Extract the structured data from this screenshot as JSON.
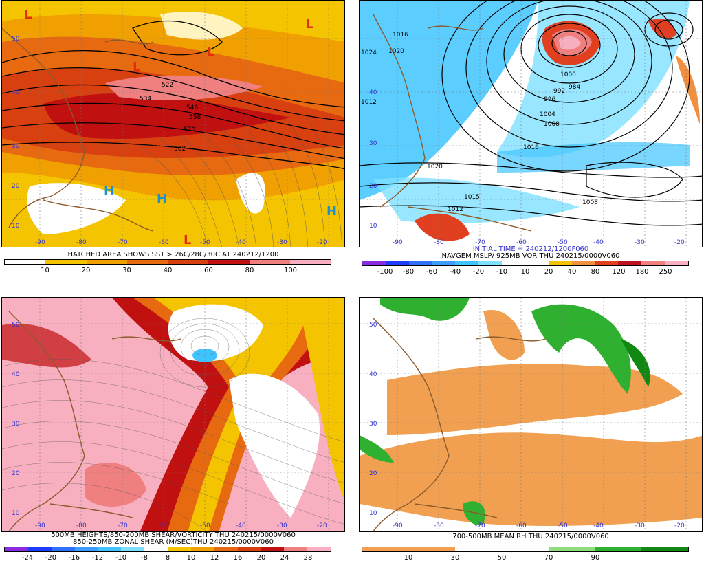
{
  "panels": {
    "tl": {
      "caption": "HATCHED AREA SHOWS SST > 26C/28C/30C AT 240212/1200",
      "ticks": [
        "10",
        "20",
        "30",
        "40",
        "60",
        "80",
        "100"
      ],
      "colors": [
        "#ffffff",
        "#f5c400",
        "#f0a000",
        "#e86a10",
        "#d84010",
        "#c01010",
        "#f08080",
        "#f8b0c0"
      ],
      "contours": [
        "522",
        "534",
        "546",
        "558",
        "570",
        "582"
      ],
      "highs": [
        "H",
        "H",
        "H"
      ],
      "lows": [
        "L",
        "L",
        "L",
        "L",
        "L"
      ],
      "lats": [
        "50",
        "40",
        "30",
        "20",
        "10"
      ],
      "lons": [
        "-90",
        "-80",
        "-70",
        "-60",
        "-50",
        "-40",
        "-30",
        "-20"
      ]
    },
    "tr": {
      "caption1": "INITIAL TIME = 240212/1200F060",
      "caption2": "NAVGEM MSLP/ 925MB VOR THU 240215/0000V060",
      "ticks": [
        "-100",
        "-80",
        "-60",
        "-40",
        "-20",
        "-10",
        "10",
        "20",
        "40",
        "80",
        "120",
        "180",
        "250"
      ],
      "colors": [
        "#8a2be2",
        "#1e3cff",
        "#2f70ff",
        "#3c9cff",
        "#40c4ff",
        "#7ee0ff",
        "#ffffff",
        "#ffffff",
        "#f5c400",
        "#f09040",
        "#e04020",
        "#c01020",
        "#f08080",
        "#f8b0c0"
      ],
      "isobars": [
        "1016",
        "1020",
        "1024",
        "1012",
        "1000",
        "992",
        "984",
        "996",
        "1004",
        "1008",
        "1016",
        "1020",
        "1015",
        "1012",
        "1008"
      ],
      "lats": [
        "40",
        "30",
        "20",
        "10"
      ],
      "lons": [
        "-90",
        "-80",
        "-70",
        "-60",
        "-50",
        "-40",
        "-30",
        "-20"
      ]
    },
    "bl": {
      "caption1": "500MB HEIGHTS/850-200MB SHEAR/VORTICITY THU 240215/0000V060",
      "caption2": "850-250MB ZONAL SHEAR (M/SEC)THU 240215/0000V060",
      "ticks": [
        "-24",
        "-20",
        "-16",
        "-12",
        "-10",
        "-8",
        "8",
        "10",
        "12",
        "16",
        "20",
        "24",
        "28"
      ],
      "colors": [
        "#8a2be2",
        "#1e3cff",
        "#2f70ff",
        "#3c9cff",
        "#40c4ff",
        "#7ee0ff",
        "#ffffff",
        "#f5c400",
        "#f0a000",
        "#e86a10",
        "#d84010",
        "#c01010",
        "#f08080",
        "#f8b0c0"
      ],
      "lats": [
        "50",
        "40",
        "30",
        "20",
        "10"
      ],
      "lons": [
        "-90",
        "-80",
        "-70",
        "-60",
        "-50",
        "-40",
        "-30",
        "-20"
      ]
    },
    "br": {
      "caption": "700-500MB MEAN RH THU 240215/0000V060",
      "ticks": [
        "10",
        "30",
        "50",
        "70",
        "90"
      ],
      "colors": [
        "#f0a050",
        "#f0a050",
        "#ffffff",
        "#ffffff",
        "#90dd80",
        "#30b030",
        "#118811"
      ],
      "lats": [
        "50",
        "40",
        "30",
        "20",
        "10"
      ],
      "lons": [
        "-90",
        "-80",
        "-70",
        "-60",
        "-50",
        "-40",
        "-30",
        "-20"
      ]
    }
  }
}
